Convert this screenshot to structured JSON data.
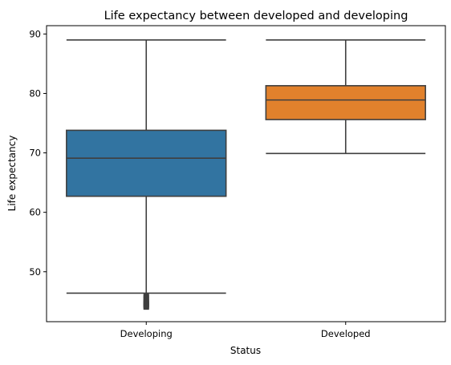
{
  "chart_data": {
    "type": "box",
    "title": "Life expectancy between developed and developing",
    "xlabel": "Status",
    "ylabel": "Life expectancy",
    "categories": [
      "Developing",
      "Developed"
    ],
    "ylim": [
      41.6,
      91.4
    ],
    "yticks": [
      50,
      60,
      70,
      80,
      90
    ],
    "grid": false,
    "boxes": [
      {
        "category": "Developing",
        "color": "#3274a1",
        "whisker_low": 46.4,
        "q1": 62.7,
        "median": 69.1,
        "q3": 73.8,
        "whisker_high": 89.0,
        "outliers": [
          46.0,
          45.7,
          45.3,
          45.0,
          44.8,
          44.6,
          44.4,
          44.2,
          44.0
        ]
      },
      {
        "category": "Developed",
        "color": "#e1812c",
        "whisker_low": 69.9,
        "q1": 75.6,
        "median": 78.9,
        "q3": 81.3,
        "whisker_high": 89.0,
        "outliers": []
      }
    ]
  }
}
